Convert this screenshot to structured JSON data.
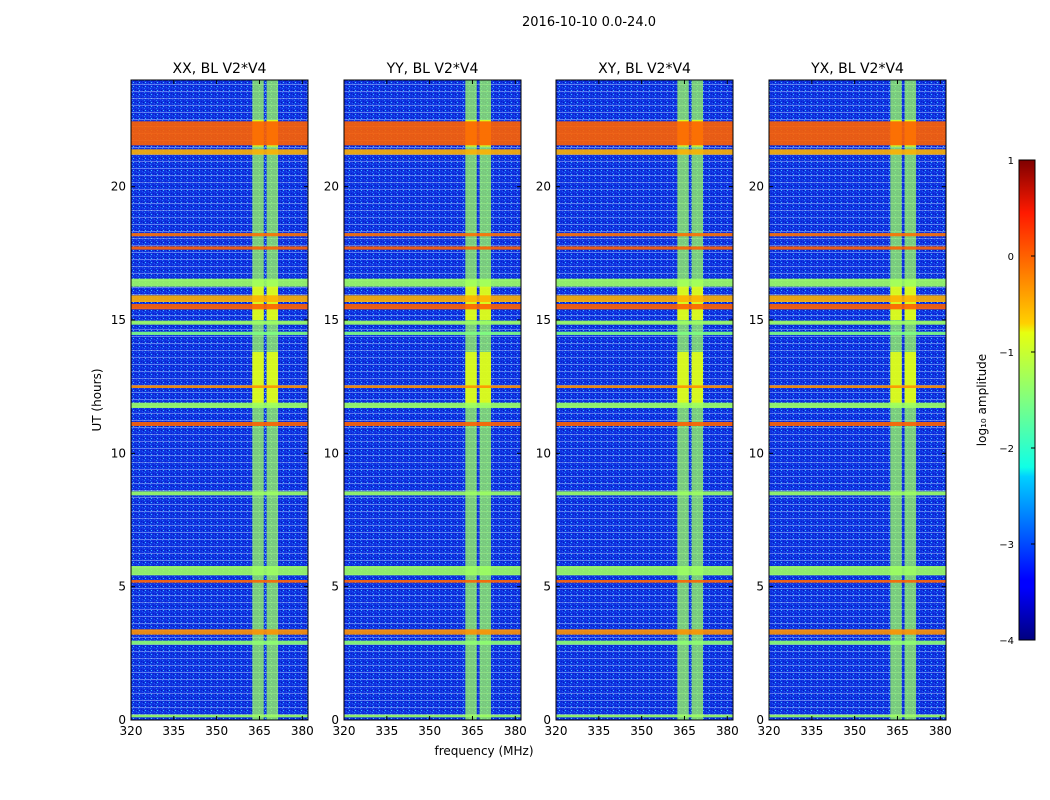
{
  "chart_data": {
    "type": "heatmap",
    "suptitle": "2016-10-10 0.0-24.0",
    "xlabel": "frequency (MHz)",
    "ylabel": "UT (hours)",
    "xlim": [
      320,
      382
    ],
    "ylim": [
      0,
      24
    ],
    "xticks": [
      "320",
      "335",
      "350",
      "365",
      "380"
    ],
    "yticks": [
      "0",
      "5",
      "10",
      "15",
      "20"
    ],
    "panels": [
      {
        "title": "XX, BL V2*V4"
      },
      {
        "title": "YY, BL V2*V4"
      },
      {
        "title": "XY, BL V2*V4"
      },
      {
        "title": "YX, BL V2*V4"
      }
    ],
    "colorbar": {
      "label": "log₁₀ amplitude",
      "range": [
        -4,
        1
      ],
      "ticks": [
        "1",
        "0",
        "−1",
        "−2",
        "−3",
        "−4"
      ],
      "colormap": "jet"
    },
    "features": {
      "background_level": -3.2,
      "rfi_columns_mhz": [
        [
          362.5,
          366.5
        ],
        [
          367.5,
          371.5
        ]
      ],
      "rfi_column_level": -1.3,
      "strong_column_segments_hours": [
        [
          15.0,
          16.5
        ],
        [
          11.8,
          13.8
        ],
        [
          21.5,
          22.5
        ]
      ],
      "bright_rows_hours": [
        {
          "t": 22.0,
          "w": 0.9,
          "level": 0.0
        },
        {
          "t": 21.3,
          "w": 0.2,
          "level": -0.5
        },
        {
          "t": 18.2,
          "w": 0.12,
          "level": -0.1
        },
        {
          "t": 17.7,
          "w": 0.12,
          "level": 0.0
        },
        {
          "t": 16.4,
          "w": 0.3,
          "level": -1.3
        },
        {
          "t": 15.8,
          "w": 0.25,
          "level": -0.5
        },
        {
          "t": 15.5,
          "w": 0.2,
          "level": 0.0
        },
        {
          "t": 14.9,
          "w": 0.15,
          "level": -1.3
        },
        {
          "t": 14.5,
          "w": 0.12,
          "level": -1.5
        },
        {
          "t": 12.5,
          "w": 0.1,
          "level": -0.3
        },
        {
          "t": 11.8,
          "w": 0.2,
          "level": -1.3
        },
        {
          "t": 11.1,
          "w": 0.15,
          "level": 0.0
        },
        {
          "t": 8.5,
          "w": 0.15,
          "level": -1.3
        },
        {
          "t": 5.6,
          "w": 0.35,
          "level": -1.3
        },
        {
          "t": 5.2,
          "w": 0.1,
          "level": 0.0
        },
        {
          "t": 3.3,
          "w": 0.2,
          "level": -0.3
        },
        {
          "t": 2.9,
          "w": 0.15,
          "level": -1.4
        },
        {
          "t": 0.15,
          "w": 0.1,
          "level": -1.3
        }
      ]
    }
  }
}
